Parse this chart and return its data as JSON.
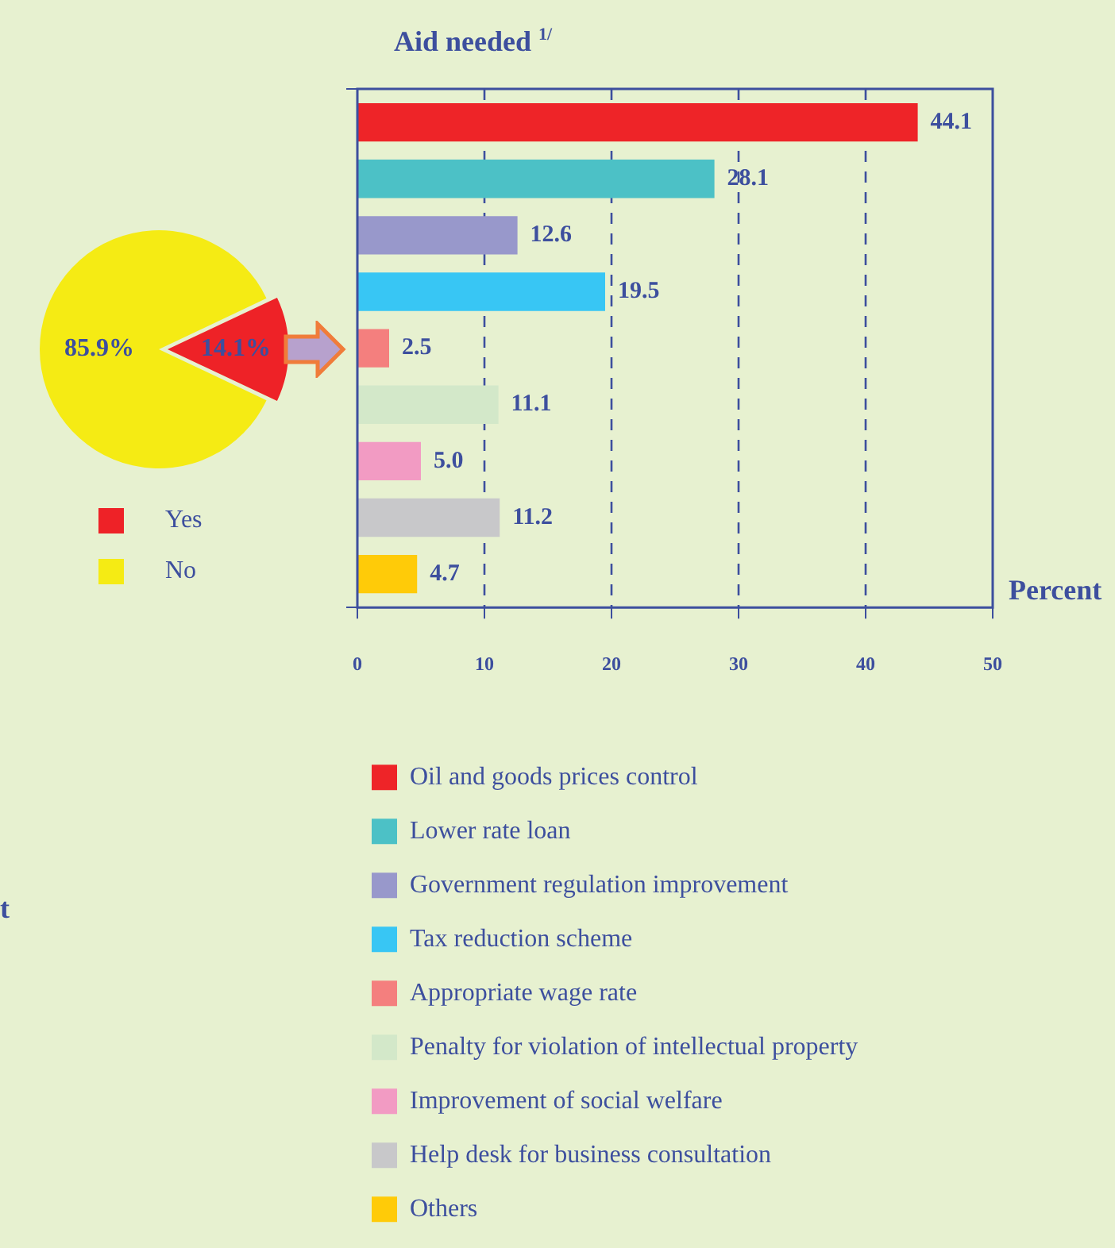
{
  "chart_data": [
    {
      "type": "pie",
      "categories": [
        "Yes",
        "No"
      ],
      "values": [
        14.1,
        85.9
      ],
      "colors": [
        "#ee2227",
        "#f5eb14"
      ],
      "value_labels": [
        "14.1%",
        "85.9%"
      ],
      "legend": "bottom",
      "annotations": [
        "t"
      ]
    },
    {
      "type": "bar",
      "title": "Aid needed $^{1/}$",
      "xlabel": "Percent",
      "orientation": "horizontal",
      "categories": [
        null
      ],
      "series": [
        {
          "name": "Oil and goods prices control",
          "color": "#ee2428",
          "values": [
            44.1
          ],
          "value_labels": [
            "44.1"
          ]
        },
        {
          "name": "Lower rate loan",
          "color": "#4cc1c6",
          "values": [
            28.1
          ],
          "value_labels": [
            "28.1"
          ]
        },
        {
          "name": "Government regulation improvement",
          "color": "#9898cb",
          "values": [
            12.6
          ],
          "value_labels": [
            "12.6"
          ]
        },
        {
          "name": "Tax reduction scheme",
          "color": "#38c6f4",
          "values": [
            19.5
          ],
          "value_labels": [
            "19.5"
          ]
        },
        {
          "name": "Appropriate wage rate",
          "color": "#f47f7e",
          "values": [
            2.5
          ],
          "value_labels": [
            "2.5"
          ]
        },
        {
          "name": "Penalty for violation of intellectual property",
          "color": "#d3e8c9",
          "values": [
            11.1
          ],
          "value_labels": [
            "11.1"
          ]
        },
        {
          "name": "Improvement of social welfare",
          "color": "#f29bc3",
          "values": [
            5.0
          ],
          "value_labels": [
            "5.0"
          ]
        },
        {
          "name": "Help desk for business consultation",
          "color": "#c8c8ca",
          "values": [
            11.2
          ],
          "value_labels": [
            "11.2"
          ]
        },
        {
          "name": "Others",
          "color": "#ffcb08",
          "values": [
            4.7
          ],
          "value_labels": [
            "4.7"
          ]
        }
      ],
      "xlim": [
        0,
        50
      ],
      "xticks": [
        0,
        10,
        20,
        30,
        40,
        50
      ],
      "grid": "x",
      "tick_labels": "x",
      "legend": "bottom"
    }
  ]
}
